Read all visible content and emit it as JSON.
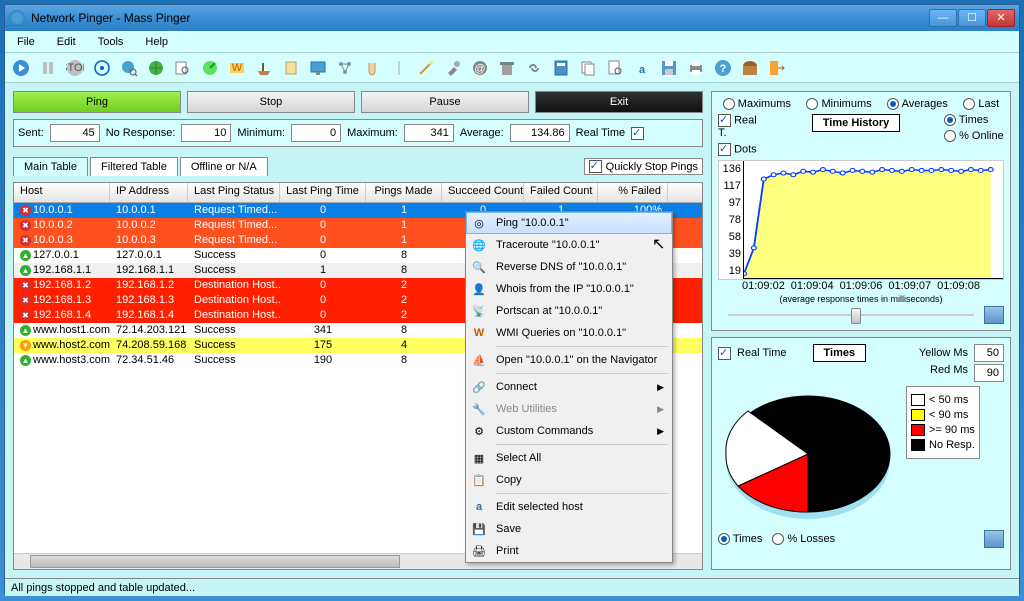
{
  "window": {
    "title": "Network Pinger - Mass Pinger"
  },
  "menu": {
    "file": "File",
    "edit": "Edit",
    "tools": "Tools",
    "help": "Help"
  },
  "buttons": {
    "ping": "Ping",
    "stop": "Stop",
    "pause": "Pause",
    "exit": "Exit"
  },
  "stats": {
    "sent_l": "Sent:",
    "sent": "45",
    "nores_l": "No Response:",
    "nores": "10",
    "min_l": "Minimum:",
    "min": "0",
    "max_l": "Maximum:",
    "max": "341",
    "avg_l": "Average:",
    "avg": "134.86",
    "rt_l": "Real Time"
  },
  "tabs": {
    "main": "Main Table",
    "filtered": "Filtered Table",
    "offline": "Offline or N/A",
    "quickstop": "Quickly Stop Pings"
  },
  "cols": {
    "host": "Host",
    "ip": "IP Address",
    "status": "Last Ping Status",
    "time": "Last Ping Time",
    "made": "Pings Made",
    "succ": "Succeed Count",
    "fail": "Failed Count",
    "pfail": "% Failed"
  },
  "colors": {
    "selected": "#0a7fe5",
    "timeout": "#ff5020",
    "deste": "#ff2000",
    "success_even": "#ffffff",
    "success_odd": "#f0f0f0",
    "yellow": "#ffff60",
    "icon_fail": "#d03030",
    "icon_ok": "#30b030",
    "icon_warn": "#ff9f00"
  },
  "rows": [
    {
      "host": "10.0.0.1",
      "ip": "10.0.0.1",
      "status": "Request Timed...",
      "time": "0",
      "made": "1",
      "succ": "0",
      "fail": "1",
      "pfail": "100%",
      "bg": "#0a7fe5",
      "fg": "#ffffff",
      "ic": "#d03030",
      "ictype": "x"
    },
    {
      "host": "10.0.0.2",
      "ip": "10.0.0.2",
      "status": "Request Timed...",
      "time": "0",
      "made": "1",
      "succ": "",
      "fail": "",
      "pfail": "",
      "bg": "#ff5020",
      "fg": "#ffffff",
      "ic": "#d03030",
      "ictype": "x"
    },
    {
      "host": "10.0.0.3",
      "ip": "10.0.0.3",
      "status": "Request Timed...",
      "time": "0",
      "made": "1",
      "succ": "",
      "fail": "",
      "pfail": "",
      "bg": "#ff5020",
      "fg": "#ffffff",
      "ic": "#d03030",
      "ictype": "x"
    },
    {
      "host": "127.0.0.1",
      "ip": "127.0.0.1",
      "status": "Success",
      "time": "0",
      "made": "8",
      "succ": "",
      "fail": "",
      "pfail": "",
      "bg": "#ffffff",
      "fg": "#000000",
      "ic": "#30b030",
      "ictype": "up"
    },
    {
      "host": "192.168.1.1",
      "ip": "192.168.1.1",
      "status": "Success",
      "time": "1",
      "made": "8",
      "succ": "",
      "fail": "",
      "pfail": "",
      "bg": "#f0f0f0",
      "fg": "#000000",
      "ic": "#30b030",
      "ictype": "up"
    },
    {
      "host": "192.168.1.2",
      "ip": "192.168.1.2",
      "status": "Destination Host...",
      "time": "0",
      "made": "2",
      "succ": "",
      "fail": "",
      "pfail": "",
      "bg": "#ff2000",
      "fg": "#ffffff",
      "ic": "#d03030",
      "ictype": "x"
    },
    {
      "host": "192.168.1.3",
      "ip": "192.168.1.3",
      "status": "Destination Host...",
      "time": "0",
      "made": "2",
      "succ": "",
      "fail": "",
      "pfail": "",
      "bg": "#ff2000",
      "fg": "#ffffff",
      "ic": "#d03030",
      "ictype": "x"
    },
    {
      "host": "192.168.1.4",
      "ip": "192.168.1.4",
      "status": "Destination Host...",
      "time": "0",
      "made": "2",
      "succ": "",
      "fail": "",
      "pfail": "",
      "bg": "#ff2000",
      "fg": "#ffffff",
      "ic": "#d03030",
      "ictype": "x"
    },
    {
      "host": "www.host1.com",
      "ip": "72.14.203.121",
      "status": "Success",
      "time": "341",
      "made": "8",
      "succ": "",
      "fail": "",
      "pfail": "",
      "bg": "#ffffff",
      "fg": "#000000",
      "ic": "#30b030",
      "ictype": "up"
    },
    {
      "host": "www.host2.com",
      "ip": "74.208.59.168",
      "status": "Success",
      "time": "175",
      "made": "4",
      "succ": "",
      "fail": "",
      "pfail": "",
      "bg": "#ffff60",
      "fg": "#000000",
      "ic": "#ff9f00",
      "ictype": "down"
    },
    {
      "host": "www.host3.com",
      "ip": "72.34.51.46",
      "status": "Success",
      "time": "190",
      "made": "8",
      "succ": "",
      "fail": "",
      "pfail": "",
      "bg": "#ffffff",
      "fg": "#000000",
      "ic": "#30b030",
      "ictype": "up"
    }
  ],
  "ctx": {
    "ping": "Ping \"10.0.0.1\"",
    "trace": "Traceroute \"10.0.0.1\"",
    "rdns": "Reverse DNS of \"10.0.0.1\"",
    "whois": "Whois from the IP \"10.0.0.1\"",
    "pscan": "Portscan at \"10.0.0.1\"",
    "wmi": "WMI Queries on \"10.0.0.1\"",
    "open": "Open \"10.0.0.1\" on the Navigator",
    "connect": "Connect",
    "webutil": "Web Utilities",
    "custom": "Custom Commands",
    "selall": "Select All",
    "copy": "Copy",
    "edithost": "Edit selected host",
    "save": "Save",
    "print": "Print"
  },
  "timechart": {
    "title": "Time History",
    "realt": "Real T.",
    "dots": "Dots",
    "times": "Times",
    "online": "% Online",
    "yticks": [
      "136",
      "117",
      "97",
      "78",
      "58",
      "39",
      "19"
    ],
    "xticks": [
      "01:09:02",
      "01:09:04",
      "01:09:06",
      "01:09:07",
      "01:09:08"
    ],
    "caption": "(average response times in milliseconds)",
    "colors": {
      "line": "#0040ff",
      "area": "#ffff80",
      "marker": "#0040ff"
    },
    "points": [
      [
        0,
        5
      ],
      [
        8,
        35
      ],
      [
        16,
        115
      ],
      [
        24,
        120
      ],
      [
        32,
        122
      ],
      [
        40,
        120
      ],
      [
        48,
        124
      ],
      [
        56,
        123
      ],
      [
        64,
        126
      ],
      [
        72,
        124
      ],
      [
        80,
        122
      ],
      [
        88,
        125
      ],
      [
        96,
        124
      ],
      [
        104,
        123
      ],
      [
        112,
        126
      ],
      [
        120,
        125
      ],
      [
        128,
        124
      ],
      [
        136,
        126
      ],
      [
        144,
        125
      ],
      [
        152,
        125
      ],
      [
        160,
        126
      ],
      [
        168,
        125
      ],
      [
        176,
        124
      ],
      [
        184,
        126
      ],
      [
        192,
        125
      ],
      [
        200,
        126
      ]
    ]
  },
  "piepanel": {
    "rt": "Real Time",
    "title": "Times",
    "yellowms_l": "Yellow Ms",
    "yellowms": "50",
    "redms_l": "Red Ms",
    "redms": "90",
    "times_r": "Times",
    "losses_r": "% Losses",
    "legend": [
      {
        "label": "< 50 ms",
        "color": "#ffffff"
      },
      {
        "label": "< 90 ms",
        "color": "#ffff00"
      },
      {
        "label": ">= 90 ms",
        "color": "#ff0000"
      },
      {
        "label": "No Resp.",
        "color": "#000000"
      }
    ],
    "slices": {
      "black": 63,
      "red": 22,
      "white": 15
    }
  },
  "radios": {
    "max": "Maximums",
    "min": "Minimums",
    "avg": "Averages",
    "last": "Last"
  },
  "status": "All pings stopped and table updated..."
}
